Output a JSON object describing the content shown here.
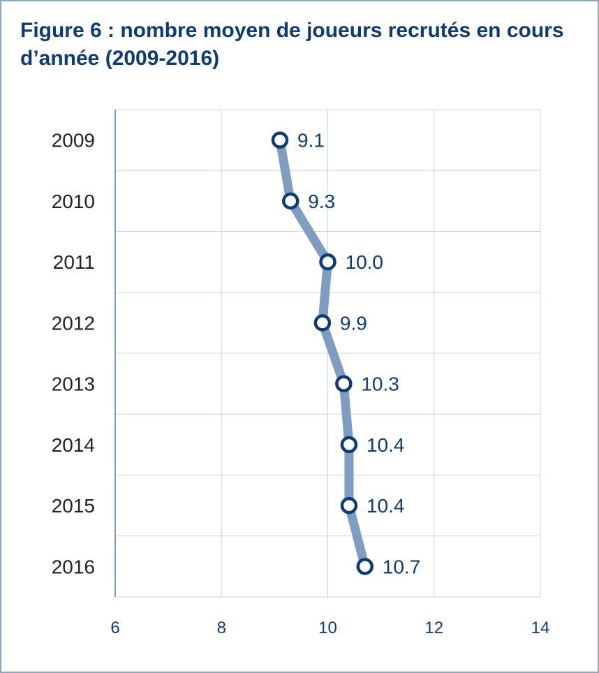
{
  "title": "Figure 6 : nombre moyen de joueurs recrutés en cours d’année (2009-2016)",
  "colors": {
    "line": "#7f9dc0",
    "marker": "#0d3b78",
    "grid": "#c8d4e4",
    "text": "#0d3b78"
  },
  "chart_data": {
    "type": "line",
    "orientation": "horizontal-values-vertical-categories",
    "title": "Figure 6 : nombre moyen de joueurs recrutés en cours d’année (2009-2016)",
    "categories": [
      "2009",
      "2010",
      "2011",
      "2012",
      "2013",
      "2014",
      "2015",
      "2016"
    ],
    "values": [
      9.1,
      9.3,
      10.0,
      9.9,
      10.3,
      10.4,
      10.4,
      10.7
    ],
    "value_labels": [
      "9.1",
      "9.3",
      "10.0",
      "9.9",
      "10.3",
      "10.4",
      "10.4",
      "10.7"
    ],
    "xlim": [
      6,
      14
    ],
    "xticks": [
      "6",
      "8",
      "10",
      "12",
      "14"
    ],
    "xlabel": "",
    "ylabel": "",
    "grid": true,
    "legend": null
  }
}
